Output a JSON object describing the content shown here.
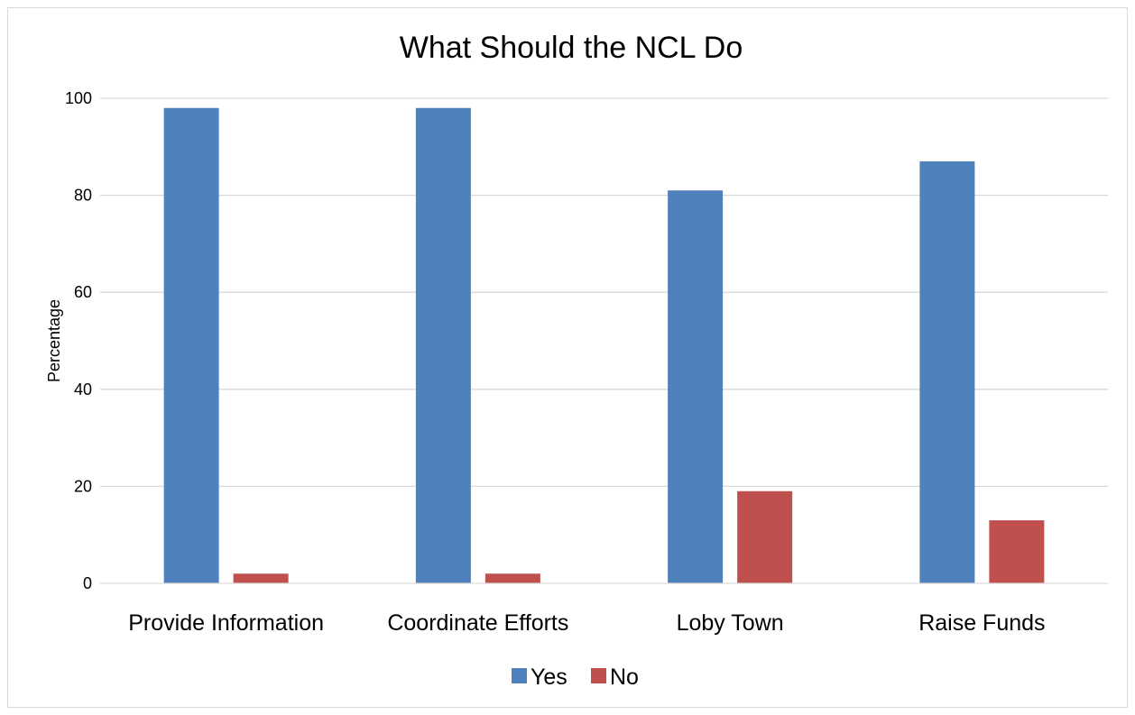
{
  "chart_data": {
    "type": "bar",
    "title": "What Should the NCL Do",
    "xlabel": "",
    "ylabel": "Percentage",
    "categories": [
      "Provide Information",
      "Coordinate Efforts",
      "Loby Town",
      "Raise Funds"
    ],
    "series": [
      {
        "name": "Yes",
        "color": "#4f81bd",
        "values": [
          98,
          98,
          81,
          87
        ]
      },
      {
        "name": "No",
        "color": "#c0504d",
        "values": [
          2,
          2,
          19,
          13
        ]
      }
    ],
    "ylim": [
      0,
      100
    ],
    "yticks": [
      0,
      20,
      40,
      60,
      80,
      100
    ],
    "grid": true,
    "legend_position": "bottom",
    "gridline_color": "#d9d9d9"
  }
}
